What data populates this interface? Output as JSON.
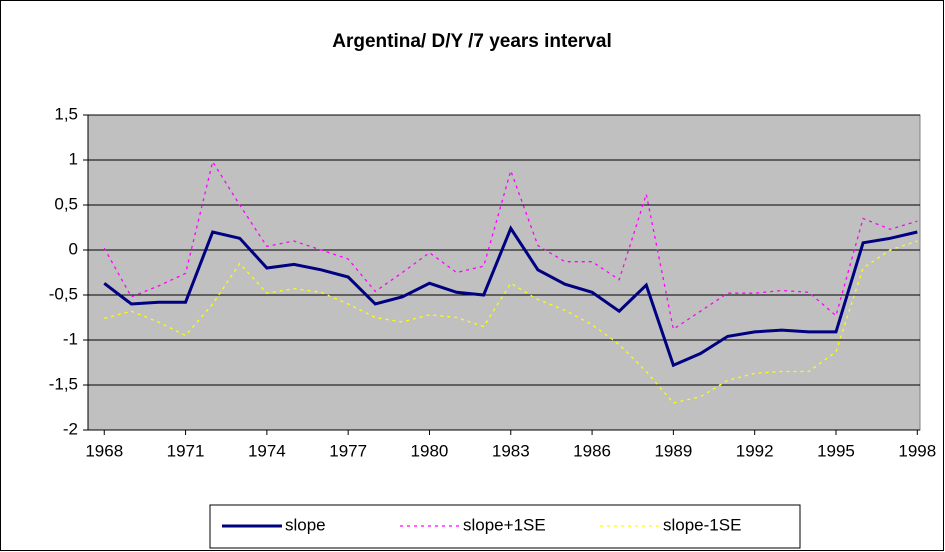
{
  "chart_data": {
    "type": "line",
    "title": "Argentina/ D/Y /7 years interval",
    "x": [
      1968,
      1969,
      1970,
      1971,
      1972,
      1973,
      1974,
      1975,
      1976,
      1977,
      1978,
      1979,
      1980,
      1981,
      1982,
      1983,
      1984,
      1985,
      1986,
      1987,
      1988,
      1989,
      1990,
      1991,
      1992,
      1993,
      1994,
      1995,
      1996,
      1997,
      1998
    ],
    "series": [
      {
        "name": "slope",
        "color": "#000080",
        "style": "solid",
        "values": [
          -0.37,
          -0.6,
          -0.58,
          -0.58,
          0.2,
          0.13,
          -0.2,
          -0.16,
          -0.22,
          -0.3,
          -0.6,
          -0.52,
          -0.37,
          -0.47,
          -0.5,
          0.24,
          -0.22,
          -0.38,
          -0.47,
          -0.68,
          -0.39,
          -1.28,
          -1.15,
          -0.96,
          -0.91,
          -0.89,
          -0.91,
          -0.91,
          0.08,
          0.13,
          0.2
        ]
      },
      {
        "name": "slope+1SE",
        "color": "#FF00FF",
        "style": "dashed",
        "values": [
          0.02,
          -0.52,
          -0.4,
          -0.26,
          0.98,
          0.5,
          0.04,
          0.1,
          0.0,
          -0.1,
          -0.46,
          -0.25,
          -0.03,
          -0.25,
          -0.18,
          0.88,
          0.05,
          -0.13,
          -0.13,
          -0.33,
          0.62,
          -0.88,
          -0.68,
          -0.48,
          -0.48,
          -0.45,
          -0.47,
          -0.73,
          0.35,
          0.23,
          0.32
        ]
      },
      {
        "name": "slope-1SE",
        "color": "#FFFF00",
        "style": "dashed",
        "values": [
          -0.76,
          -0.68,
          -0.8,
          -0.95,
          -0.6,
          -0.15,
          -0.48,
          -0.43,
          -0.47,
          -0.6,
          -0.75,
          -0.8,
          -0.72,
          -0.75,
          -0.85,
          -0.37,
          -0.55,
          -0.67,
          -0.83,
          -1.05,
          -1.35,
          -1.7,
          -1.63,
          -1.45,
          -1.37,
          -1.35,
          -1.35,
          -1.13,
          -0.2,
          0.0,
          0.1
        ]
      }
    ],
    "xlim": [
      1967.4,
      1998.1
    ],
    "xticks": [
      1968,
      1971,
      1974,
      1977,
      1980,
      1983,
      1986,
      1989,
      1992,
      1995,
      1998
    ],
    "ylim": [
      -2,
      1.5
    ],
    "yticks": [
      {
        "value": 1.5,
        "label": "1,5"
      },
      1,
      {
        "value": 0.5,
        "label": "0,5"
      },
      0,
      {
        "value": -0.5,
        "label": "-0,5"
      },
      -1,
      {
        "value": -1.5,
        "label": "-1,5"
      },
      -2
    ],
    "grid": true,
    "plot_background": "#C0C0C0",
    "legend": "bottom"
  }
}
